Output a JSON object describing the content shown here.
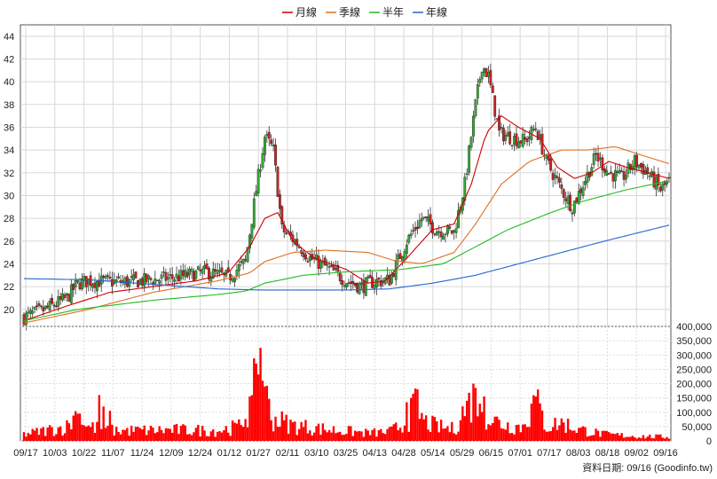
{
  "chart_data": [
    {
      "type": "candlestick",
      "legend": [
        {
          "name": "月線",
          "color": "#cc0000"
        },
        {
          "name": "季線",
          "color": "#e07020"
        },
        {
          "name": "半年",
          "color": "#22bb22"
        },
        {
          "name": "年線",
          "color": "#2266cc"
        }
      ],
      "legend_position": "top-center",
      "ylim": [
        18.5,
        45
      ],
      "yticks": [
        20,
        22,
        24,
        26,
        28,
        30,
        32,
        34,
        36,
        38,
        40,
        42,
        44
      ],
      "x_tick_labels": [
        "09/17",
        "10/03",
        "10/22",
        "11/07",
        "11/24",
        "12/09",
        "12/24",
        "01/12",
        "01/27",
        "02/11",
        "03/10",
        "03/25",
        "04/13",
        "04/28",
        "05/14",
        "05/29",
        "06/15",
        "07/01",
        "07/17",
        "08/03",
        "08/18",
        "09/02",
        "09/16"
      ],
      "grid": true,
      "up_color": "#33aa33",
      "down_color": "#cc2222",
      "price_keyframes": [
        [
          0,
          19.3
        ],
        [
          10,
          20.0
        ],
        [
          20,
          21.0
        ],
        [
          25,
          22.3
        ],
        [
          30,
          22.5
        ],
        [
          45,
          22.4
        ],
        [
          55,
          22.5
        ],
        [
          70,
          22.8
        ],
        [
          85,
          23.3
        ],
        [
          95,
          22.8
        ],
        [
          103,
          24.2
        ],
        [
          108,
          30.5
        ],
        [
          112,
          35.2
        ],
        [
          116,
          34.0
        ],
        [
          120,
          27.0
        ],
        [
          126,
          26.0
        ],
        [
          133,
          24.5
        ],
        [
          138,
          24.0
        ],
        [
          143,
          23.4
        ],
        [
          150,
          22.5
        ],
        [
          157,
          22.0
        ],
        [
          162,
          22.4
        ],
        [
          170,
          22.6
        ],
        [
          178,
          26.0
        ],
        [
          185,
          28.0
        ],
        [
          192,
          27.0
        ],
        [
          200,
          26.8
        ],
        [
          205,
          31.0
        ],
        [
          210,
          38.0
        ],
        [
          213,
          41.5
        ],
        [
          216,
          40.5
        ],
        [
          221,
          35.5
        ],
        [
          228,
          35.0
        ],
        [
          233,
          34.8
        ],
        [
          238,
          36.0
        ],
        [
          243,
          33.0
        ],
        [
          250,
          30.5
        ],
        [
          255,
          29.0
        ],
        [
          260,
          31.0
        ],
        [
          266,
          33.5
        ],
        [
          272,
          32.0
        ],
        [
          278,
          31.5
        ],
        [
          284,
          33.0
        ],
        [
          290,
          32.0
        ],
        [
          296,
          30.5
        ],
        [
          300,
          31.2
        ]
      ],
      "moving_averages": [
        {
          "name": "月線",
          "points": [
            [
              0,
              19.0
            ],
            [
              20,
              20.3
            ],
            [
              40,
              21.5
            ],
            [
              60,
              22.0
            ],
            [
              80,
              22.5
            ],
            [
              95,
              23.2
            ],
            [
              105,
              25.5
            ],
            [
              112,
              28.0
            ],
            [
              118,
              28.5
            ],
            [
              125,
              26.0
            ],
            [
              135,
              24.5
            ],
            [
              150,
              23.5
            ],
            [
              160,
              22.3
            ],
            [
              168,
              22.5
            ],
            [
              178,
              24.5
            ],
            [
              190,
              27.0
            ],
            [
              200,
              27.5
            ],
            [
              208,
              31.0
            ],
            [
              215,
              35.5
            ],
            [
              222,
              37.0
            ],
            [
              230,
              36.0
            ],
            [
              240,
              35.0
            ],
            [
              248,
              32.5
            ],
            [
              256,
              31.5
            ],
            [
              264,
              32.0
            ],
            [
              272,
              33.0
            ],
            [
              280,
              32.5
            ],
            [
              290,
              32.0
            ],
            [
              300,
              31.5
            ]
          ]
        },
        {
          "name": "季線",
          "points": [
            [
              0,
              18.8
            ],
            [
              30,
              20.0
            ],
            [
              60,
              21.5
            ],
            [
              90,
              22.5
            ],
            [
              105,
              23.2
            ],
            [
              112,
              24.2
            ],
            [
              125,
              25.0
            ],
            [
              140,
              25.2
            ],
            [
              160,
              25.0
            ],
            [
              172,
              24.3
            ],
            [
              185,
              24.0
            ],
            [
              200,
              25.0
            ],
            [
              210,
              27.5
            ],
            [
              222,
              31.0
            ],
            [
              235,
              33.0
            ],
            [
              250,
              34.0
            ],
            [
              262,
              34.0
            ],
            [
              275,
              34.3
            ],
            [
              288,
              33.5
            ],
            [
              300,
              32.8
            ]
          ]
        },
        {
          "name": "半年",
          "points": [
            [
              0,
              19.0
            ],
            [
              25,
              20.0
            ],
            [
              60,
              20.8
            ],
            [
              90,
              21.3
            ],
            [
              103,
              21.6
            ],
            [
              112,
              22.3
            ],
            [
              130,
              23.0
            ],
            [
              150,
              23.3
            ],
            [
              175,
              23.5
            ],
            [
              195,
              24.0
            ],
            [
              205,
              25.0
            ],
            [
              225,
              27.0
            ],
            [
              245,
              28.5
            ],
            [
              260,
              29.5
            ],
            [
              280,
              30.5
            ],
            [
              300,
              31.3
            ]
          ]
        },
        {
          "name": "年線",
          "points": [
            [
              0,
              22.7
            ],
            [
              30,
              22.6
            ],
            [
              60,
              22.2
            ],
            [
              90,
              21.8
            ],
            [
              110,
              21.7
            ],
            [
              130,
              21.7
            ],
            [
              150,
              21.7
            ],
            [
              170,
              21.8
            ],
            [
              190,
              22.3
            ],
            [
              210,
              23.0
            ],
            [
              230,
              24.0
            ],
            [
              250,
              25.0
            ],
            [
              270,
              26.0
            ],
            [
              285,
              26.7
            ],
            [
              300,
              27.4
            ]
          ]
        }
      ]
    },
    {
      "type": "bar",
      "bar_color": "#ff0000",
      "ylim": [
        0,
        400000
      ],
      "yticks": [
        "0",
        "50,000",
        "100,000",
        "150,000",
        "200,000",
        "250,000",
        "300,000",
        "350,000",
        "400,000"
      ],
      "volume_keyframes": [
        [
          0,
          25000
        ],
        [
          20,
          55000
        ],
        [
          25,
          110000
        ],
        [
          30,
          55000
        ],
        [
          40,
          40000
        ],
        [
          50,
          40000
        ],
        [
          70,
          42000
        ],
        [
          90,
          40000
        ],
        [
          100,
          55000
        ],
        [
          106,
          150000
        ],
        [
          108,
          250000
        ],
        [
          110,
          300000
        ],
        [
          112,
          190000
        ],
        [
          115,
          90000
        ],
        [
          125,
          60000
        ],
        [
          140,
          45000
        ],
        [
          160,
          30000
        ],
        [
          170,
          35000
        ],
        [
          178,
          70000
        ],
        [
          182,
          140000
        ],
        [
          186,
          75000
        ],
        [
          192,
          55000
        ],
        [
          200,
          45000
        ],
        [
          206,
          140000
        ],
        [
          210,
          175000
        ],
        [
          213,
          120000
        ],
        [
          218,
          80000
        ],
        [
          225,
          60000
        ],
        [
          232,
          55000
        ],
        [
          238,
          150000
        ],
        [
          243,
          55000
        ],
        [
          250,
          70000
        ],
        [
          258,
          45000
        ],
        [
          270,
          25000
        ],
        [
          285,
          18000
        ],
        [
          300,
          15000
        ]
      ],
      "spikes": [
        [
          106,
          160000
        ],
        [
          108,
          270000
        ],
        [
          110,
          325000
        ],
        [
          111,
          210000
        ],
        [
          112,
          190000
        ],
        [
          178,
          135000
        ],
        [
          181,
          165000
        ],
        [
          183,
          180000
        ],
        [
          206,
          140000
        ],
        [
          209,
          200000
        ],
        [
          210,
          185000
        ],
        [
          212,
          130000
        ],
        [
          214,
          155000
        ],
        [
          236,
          130000
        ],
        [
          238,
          155000
        ],
        [
          35,
          160000
        ],
        [
          37,
          120000
        ],
        [
          25,
          95000
        ],
        [
          40,
          105000
        ]
      ],
      "watermark": "資料日期: 09/16  (Goodinfo.tw)"
    }
  ]
}
